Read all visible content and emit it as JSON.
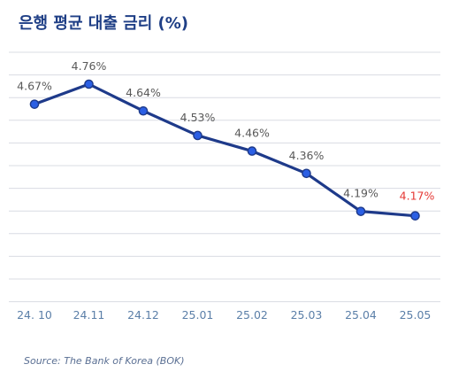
{
  "title": "은행 평균 대출 금리 (%)",
  "source": "Source: The Bank of Korea (BOK)",
  "colors": {
    "line": "#1e3a8a",
    "marker": "#2b5fe4",
    "label": "#595959",
    "highlight_label": "#e53935",
    "grid": "#d9dce3",
    "tick": "#5b7fa8"
  },
  "chart_data": {
    "type": "line",
    "title": "은행 평균 대출 금리 (%)",
    "categories": [
      "24. 10",
      "24.11",
      "24.12",
      "25.01",
      "25.02",
      "25.03",
      "25.04",
      "25.05"
    ],
    "values": [
      4.67,
      4.76,
      4.64,
      4.53,
      4.46,
      4.36,
      4.19,
      4.17
    ],
    "data_labels": [
      "4.67%",
      "4.76%",
      "4.64%",
      "4.53%",
      "4.46%",
      "4.36%",
      "4.19%",
      "4.17%"
    ],
    "highlight_index": 7,
    "xlabel": "",
    "ylabel": "",
    "grid": true,
    "legend": "none"
  }
}
